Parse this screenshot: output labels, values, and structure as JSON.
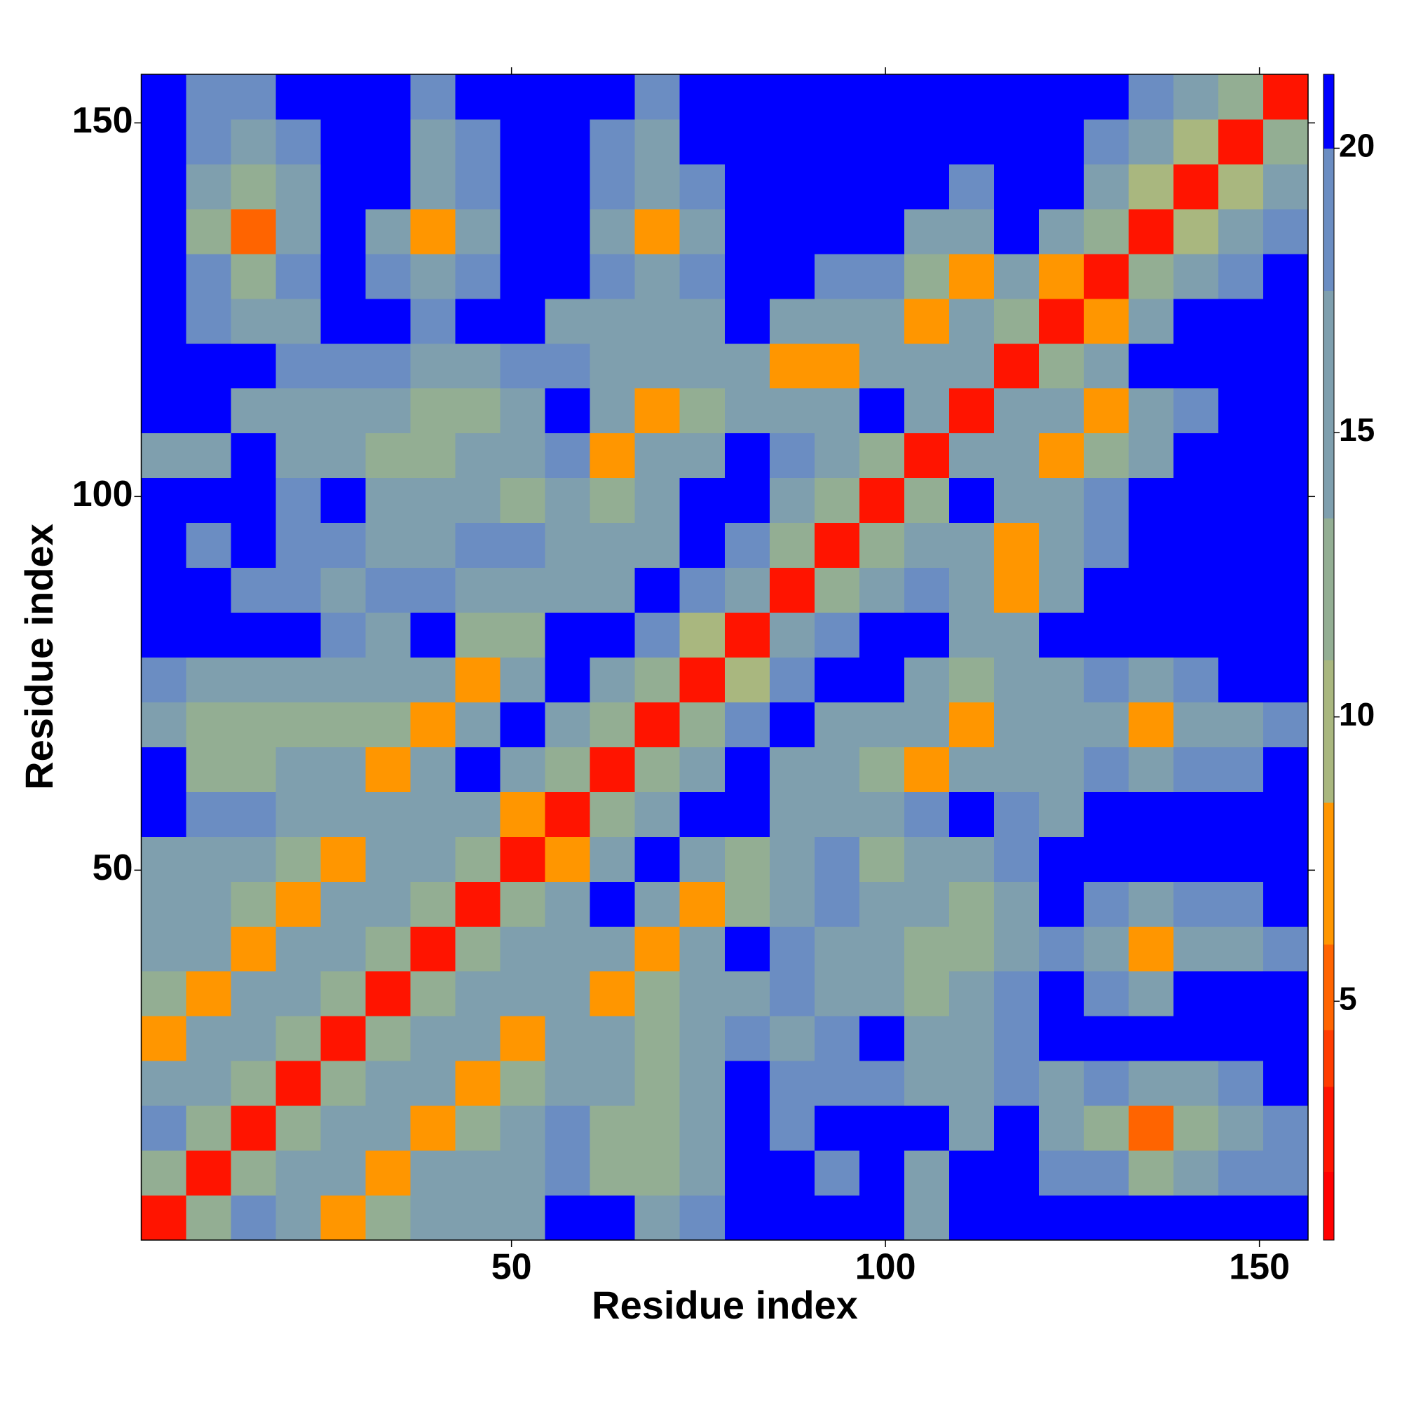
{
  "chart_data": {
    "type": "heatmap",
    "x_label": "Residue index",
    "y_label": "Residue index",
    "x": [
      3.5,
      9.5,
      15.5,
      21.5,
      27.5,
      33.5,
      39.5,
      45.5,
      51.5,
      57.5,
      63.5,
      69.5,
      75.5,
      81.5,
      87.5,
      93.5,
      99.5,
      105.5,
      111.5,
      117.5,
      123.5,
      129.5,
      135.5,
      141.5,
      147.5,
      153.5
    ],
    "y": [
      3.5,
      9.5,
      15.5,
      21.5,
      27.5,
      33.5,
      39.5,
      45.5,
      51.5,
      57.5,
      63.5,
      69.5,
      75.5,
      81.5,
      87.5,
      93.5,
      99.5,
      105.5,
      111.5,
      117.5,
      123.5,
      129.5,
      135.5,
      141.5,
      147.5,
      153.5
    ],
    "z": [
      [
        2,
        12,
        18,
        14,
        7,
        12,
        15,
        14,
        15,
        21,
        21,
        16,
        18,
        21,
        21,
        21,
        21,
        15,
        21,
        21,
        21,
        21,
        21,
        21,
        21,
        21
      ],
      [
        12,
        2,
        12,
        16,
        14,
        7,
        14,
        16,
        14,
        18,
        13,
        12,
        16,
        21,
        21,
        18,
        21,
        15,
        21,
        21,
        18,
        18,
        13,
        16,
        18,
        18
      ],
      [
        18,
        12,
        2,
        12,
        15,
        14,
        7,
        13,
        16,
        18,
        13,
        12,
        16,
        21,
        18,
        21,
        21,
        21,
        16,
        21,
        16,
        13,
        5,
        13,
        16,
        18
      ],
      [
        14,
        16,
        12,
        2,
        12,
        14,
        15,
        7,
        13,
        16,
        16,
        12,
        15,
        21,
        18,
        18,
        18,
        16,
        15,
        18,
        16,
        18,
        14,
        16,
        18,
        21
      ],
      [
        7,
        14,
        15,
        12,
        2,
        12,
        14,
        15,
        7,
        14,
        15,
        12,
        14,
        18,
        16,
        18,
        21,
        16,
        15,
        18,
        21,
        21,
        21,
        21,
        21,
        21
      ],
      [
        12,
        7,
        14,
        14,
        12,
        2,
        12,
        14,
        15,
        16,
        8,
        12,
        14,
        16,
        18,
        16,
        14,
        13,
        14,
        18,
        21,
        18,
        16,
        21,
        21,
        21
      ],
      [
        15,
        14,
        7,
        15,
        14,
        12,
        2,
        12,
        15,
        14,
        15,
        7,
        14,
        21,
        18,
        16,
        14,
        13,
        12,
        16,
        18,
        14,
        6,
        14,
        16,
        18
      ],
      [
        14,
        16,
        13,
        7,
        15,
        14,
        12,
        2,
        12,
        16,
        21,
        14,
        7,
        13,
        16,
        18,
        15,
        14,
        12,
        16,
        21,
        18,
        15,
        18,
        18,
        21
      ],
      [
        15,
        14,
        16,
        13,
        7,
        15,
        15,
        12,
        2,
        6,
        16,
        21,
        16,
        12,
        14,
        18,
        13,
        15,
        14,
        18,
        21,
        21,
        21,
        21,
        21,
        21
      ],
      [
        21,
        18,
        18,
        16,
        14,
        16,
        14,
        16,
        6,
        2,
        12,
        16,
        21,
        21,
        14,
        16,
        14,
        18,
        21,
        18,
        16,
        21,
        21,
        21,
        21,
        21
      ],
      [
        21,
        13,
        13,
        16,
        15,
        8,
        15,
        21,
        16,
        12,
        2,
        12,
        16,
        21,
        16,
        14,
        13,
        7,
        14,
        15,
        16,
        18,
        15,
        18,
        18,
        21
      ],
      [
        16,
        12,
        12,
        12,
        12,
        12,
        7,
        14,
        21,
        16,
        12,
        2,
        12,
        18,
        21,
        14,
        16,
        14,
        7,
        14,
        15,
        16,
        7,
        15,
        16,
        18
      ],
      [
        18,
        16,
        16,
        15,
        14,
        14,
        14,
        7,
        16,
        21,
        16,
        12,
        2,
        10,
        18,
        21,
        21,
        14,
        12,
        14,
        16,
        18,
        15,
        18,
        21,
        21
      ],
      [
        21,
        21,
        21,
        21,
        18,
        16,
        21,
        13,
        12,
        21,
        21,
        18,
        10,
        2,
        14,
        18,
        21,
        21,
        15,
        16,
        21,
        21,
        21,
        21,
        21,
        21
      ],
      [
        21,
        21,
        18,
        18,
        16,
        18,
        18,
        16,
        14,
        14,
        16,
        21,
        18,
        14,
        2,
        12,
        15,
        18,
        16,
        6,
        15,
        21,
        21,
        21,
        21,
        21
      ],
      [
        21,
        18,
        21,
        18,
        18,
        16,
        16,
        18,
        18,
        16,
        14,
        14,
        21,
        18,
        12,
        2,
        12,
        14,
        15,
        8,
        16,
        18,
        21,
        21,
        21,
        21
      ],
      [
        21,
        21,
        21,
        18,
        21,
        14,
        14,
        15,
        13,
        14,
        13,
        16,
        21,
        21,
        15,
        12,
        2,
        12,
        21,
        16,
        15,
        18,
        21,
        21,
        21,
        21
      ],
      [
        15,
        15,
        21,
        16,
        16,
        13,
        13,
        14,
        15,
        18,
        7,
        14,
        14,
        21,
        18,
        14,
        12,
        2,
        14,
        16,
        7,
        12,
        16,
        21,
        21,
        21
      ],
      [
        21,
        21,
        16,
        15,
        15,
        14,
        12,
        12,
        14,
        21,
        14,
        7,
        12,
        15,
        16,
        15,
        21,
        14,
        2,
        14,
        15,
        7,
        15,
        18,
        21,
        21
      ],
      [
        21,
        21,
        21,
        18,
        18,
        18,
        16,
        16,
        18,
        18,
        15,
        14,
        14,
        16,
        6,
        8,
        16,
        16,
        14,
        2,
        12,
        16,
        21,
        21,
        21,
        21
      ],
      [
        21,
        18,
        16,
        16,
        21,
        21,
        18,
        21,
        21,
        16,
        16,
        15,
        16,
        21,
        15,
        16,
        15,
        7,
        15,
        12,
        2,
        6,
        16,
        21,
        21,
        21
      ],
      [
        21,
        18,
        13,
        18,
        21,
        18,
        14,
        18,
        21,
        21,
        18,
        16,
        18,
        21,
        21,
        18,
        18,
        12,
        7,
        16,
        6,
        2,
        12,
        16,
        18,
        21
      ],
      [
        21,
        13,
        5,
        14,
        21,
        16,
        6,
        15,
        21,
        21,
        15,
        7,
        15,
        21,
        21,
        21,
        21,
        16,
        15,
        21,
        16,
        12,
        2,
        10,
        15,
        18
      ],
      [
        21,
        16,
        13,
        16,
        21,
        21,
        14,
        18,
        21,
        21,
        18,
        15,
        18,
        21,
        21,
        21,
        21,
        21,
        18,
        21,
        21,
        16,
        10,
        2,
        10,
        16
      ],
      [
        21,
        18,
        16,
        18,
        21,
        21,
        16,
        18,
        21,
        21,
        18,
        16,
        21,
        21,
        21,
        21,
        21,
        21,
        21,
        21,
        21,
        18,
        15,
        10,
        2,
        12
      ],
      [
        21,
        18,
        18,
        21,
        21,
        21,
        18,
        21,
        21,
        21,
        21,
        18,
        21,
        21,
        21,
        21,
        21,
        21,
        21,
        21,
        21,
        21,
        18,
        16,
        12,
        2
      ]
    ],
    "xlim": [
      0.5,
      156.5
    ],
    "ylim": [
      0.5,
      156.5
    ],
    "xticks": [
      50,
      100,
      150
    ],
    "yticks": [
      50,
      100,
      150
    ],
    "clim": [
      0.8,
      21.3
    ],
    "cticks": [
      5,
      10,
      15,
      20
    ],
    "levels": [
      0.8,
      2,
      3.5,
      4.5,
      6,
      8.5,
      11,
      13.5,
      17.5,
      20,
      21.3
    ],
    "colors": [
      "#ff0000",
      "#ff1400",
      "#ff3c00",
      "#ff6400",
      "#ff9600",
      "#a9b77f",
      "#93ae93",
      "#7f9fae",
      "#6b8dc2",
      "#0000ff"
    ]
  }
}
